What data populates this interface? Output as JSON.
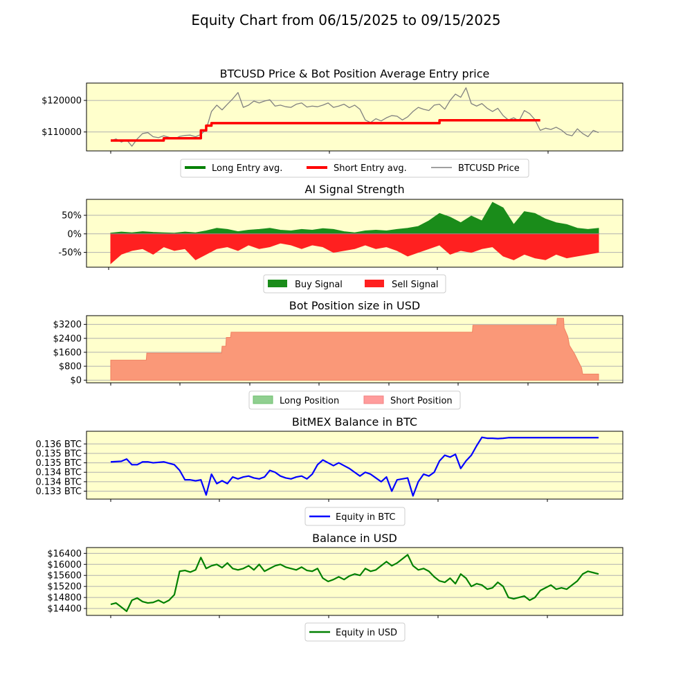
{
  "figure_title": "Equity Chart from 06/15/2025 to 09/15/2025",
  "colors": {
    "panel_bg": "#ffffcc",
    "grid": "#b0b0b0",
    "price": "#808080",
    "long_entry": "#008000",
    "short_entry": "#ff0000",
    "buy_signal": "#1a8c1a",
    "sell_signal": "#ff2020",
    "long_position": "#90cf90",
    "short_position": "#fa9878",
    "equity_btc": "#0000ff",
    "equity_usd": "#008000"
  },
  "chart_data": [
    {
      "type": "line",
      "title": "BTCUSD Price & Bot Position Average Entry price",
      "x_range": [
        "06/15/2025",
        "09/15/2025"
      ],
      "ylim": [
        104000,
        125500
      ],
      "yticks": [
        110000,
        120000
      ],
      "ytick_labels": [
        "$110000",
        "$120000"
      ],
      "grid": "horizontal",
      "legend": {
        "placement": "below",
        "entries": [
          "Long Entry avg.",
          "Short Entry avg.",
          "BTCUSD Price"
        ]
      },
      "series": [
        {
          "name": "BTCUSD Price",
          "x": [
            0,
            1,
            2,
            3,
            4,
            5,
            6,
            7,
            8,
            9,
            10,
            11,
            12,
            13,
            14,
            15,
            16,
            17,
            18,
            19,
            20,
            21,
            22,
            23,
            24,
            25,
            26,
            27,
            28,
            29,
            30,
            31,
            32,
            33,
            34,
            35,
            36,
            37,
            38,
            39,
            40,
            41,
            42,
            43,
            44,
            45,
            46,
            47,
            48,
            49,
            50,
            51,
            52,
            53,
            54,
            55,
            56,
            57,
            58,
            59,
            60,
            61,
            62,
            63,
            64,
            65,
            66,
            67,
            68,
            69,
            70,
            71,
            72,
            73,
            74,
            75,
            76,
            77,
            78,
            79,
            80,
            81,
            82,
            83,
            84,
            85,
            86,
            87,
            88,
            89,
            90,
            91,
            92
          ],
          "values": [
            107200,
            107800,
            106800,
            107500,
            105500,
            107800,
            109500,
            109800,
            108500,
            108200,
            108800,
            108300,
            107800,
            108600,
            108900,
            109000,
            108500,
            109200,
            110800,
            116500,
            118500,
            117000,
            118800,
            120500,
            122500,
            117800,
            118500,
            119800,
            119200,
            119800,
            120200,
            118200,
            118500,
            118000,
            117800,
            118800,
            119200,
            117900,
            118200,
            118000,
            118500,
            119200,
            117800,
            118200,
            118800,
            117700,
            118500,
            117200,
            113800,
            113000,
            114200,
            113500,
            114500,
            115200,
            115000,
            113800,
            114800,
            116500,
            117800,
            117200,
            116800,
            118500,
            118800,
            117200,
            120000,
            122000,
            121000,
            124000,
            119000,
            118200,
            119000,
            117500,
            116500,
            117500,
            115200,
            113800,
            114500,
            113500,
            116800,
            115800,
            113900,
            110500,
            111200,
            110800,
            111500,
            110600,
            109200,
            108800,
            111000,
            109500,
            108500,
            110500,
            109800
          ],
          "note": "sampled daily"
        },
        {
          "name": "Short Entry avg.",
          "x": [
            0,
            5,
            10,
            16,
            17,
            18,
            19,
            40,
            60,
            62,
            70,
            75,
            80,
            81
          ],
          "values": [
            107300,
            107300,
            108000,
            108000,
            110500,
            112000,
            112800,
            112800,
            112800,
            113700,
            113700,
            113700,
            113700,
            113700
          ]
        },
        {
          "name": "Long Entry avg.",
          "x": [],
          "values": []
        }
      ]
    },
    {
      "type": "area",
      "title": "AI Signal Strength",
      "ylim": [
        -90,
        93
      ],
      "yticks": [
        -50,
        0,
        50
      ],
      "ytick_labels": [
        "-50%",
        "0%",
        "50%"
      ],
      "grid": "horizontal",
      "legend": {
        "placement": "below",
        "entries": [
          "Buy Signal",
          "Sell Signal"
        ]
      },
      "series": [
        {
          "name": "Buy Signal",
          "x": [
            0,
            2,
            4,
            6,
            8,
            10,
            12,
            14,
            16,
            18,
            20,
            22,
            24,
            26,
            28,
            30,
            32,
            34,
            36,
            38,
            40,
            42,
            44,
            46,
            48,
            50,
            52,
            54,
            56,
            58,
            60,
            62,
            64,
            66,
            68,
            70,
            72,
            74,
            76,
            78,
            80,
            82,
            84,
            86,
            88,
            90,
            92
          ],
          "values": [
            2,
            5,
            3,
            6,
            4,
            3,
            2,
            5,
            3,
            8,
            15,
            12,
            6,
            10,
            12,
            15,
            10,
            8,
            12,
            10,
            14,
            12,
            6,
            3,
            8,
            10,
            8,
            12,
            15,
            20,
            35,
            55,
            45,
            30,
            48,
            35,
            85,
            70,
            25,
            60,
            55,
            40,
            30,
            25,
            15,
            12,
            15
          ]
        },
        {
          "name": "Sell Signal",
          "x": [
            0,
            2,
            4,
            6,
            8,
            10,
            12,
            14,
            16,
            18,
            20,
            22,
            24,
            26,
            28,
            30,
            32,
            34,
            36,
            38,
            40,
            42,
            44,
            46,
            48,
            50,
            52,
            54,
            56,
            58,
            60,
            62,
            64,
            66,
            68,
            70,
            72,
            74,
            76,
            78,
            80,
            82,
            84,
            86,
            88,
            90,
            92
          ],
          "values": [
            -80,
            -55,
            -45,
            -40,
            -55,
            -35,
            -45,
            -40,
            -70,
            -55,
            -40,
            -35,
            -45,
            -30,
            -40,
            -35,
            -25,
            -30,
            -40,
            -30,
            -35,
            -50,
            -45,
            -40,
            -30,
            -40,
            -35,
            -45,
            -60,
            -50,
            -40,
            -30,
            -55,
            -45,
            -50,
            -40,
            -35,
            -60,
            -70,
            -55,
            -65,
            -70,
            -55,
            -65,
            -60,
            -55,
            -50
          ]
        }
      ]
    },
    {
      "type": "area",
      "title": "Bot Position size in USD",
      "ylim": [
        -150,
        3700
      ],
      "yticks": [
        0,
        800,
        1600,
        2400,
        3200
      ],
      "ytick_labels": [
        "$0",
        "$800",
        "$1600",
        "$2400",
        "$3200"
      ],
      "grid": "horizontal",
      "legend": {
        "placement": "below",
        "entries": [
          "Long Position",
          "Short Position"
        ]
      },
      "series": [
        {
          "name": "Short Position",
          "x": [
            0,
            6.7,
            6.8,
            20.9,
            21,
            21.7,
            21.8,
            22.6,
            22.7,
            68.2,
            68.3,
            84.1,
            84.2,
            85.4,
            85.5,
            86.2,
            86.5,
            87.5,
            88.3,
            88.8,
            89,
            92
          ],
          "values": [
            1150,
            1150,
            1550,
            1550,
            1950,
            1950,
            2450,
            2450,
            2750,
            2750,
            3150,
            3150,
            3550,
            3550,
            3000,
            2500,
            2000,
            1500,
            1000,
            700,
            350,
            350
          ]
        },
        {
          "name": "Long Position",
          "x": [],
          "values": []
        }
      ]
    },
    {
      "type": "line",
      "title": "BitMEX Balance in BTC",
      "ylim": [
        0.13278,
        0.13637
      ],
      "yticks": [
        0.1332,
        0.1337,
        0.1342,
        0.1347,
        0.1352,
        0.1357
      ],
      "ytick_labels": [
        "0.133 BTC",
        "0.134 BTC",
        "0.134 BTC",
        "0.135 BTC",
        "0.135 BTC",
        "0.136 BTC"
      ],
      "grid": "horizontal",
      "legend": {
        "placement": "below",
        "entries": [
          "Equity in BTC"
        ]
      },
      "series": [
        {
          "name": "Equity in BTC",
          "x": [
            0,
            2,
            3,
            4,
            5,
            6,
            7,
            8,
            10,
            12,
            13,
            14,
            15,
            16,
            17,
            18,
            19,
            20,
            21,
            22,
            23,
            24,
            25,
            26,
            27,
            28,
            29,
            30,
            31,
            32,
            33,
            34,
            35,
            36,
            37,
            38,
            39,
            40,
            41,
            42,
            43,
            44,
            45,
            46,
            47,
            48,
            49,
            50,
            51,
            52,
            53,
            54,
            55,
            56,
            57,
            58,
            59,
            60,
            61,
            62,
            63,
            64,
            65,
            66,
            67,
            68,
            69,
            70,
            71,
            72,
            73,
            74,
            75,
            76,
            78,
            80,
            82,
            84,
            86,
            88,
            90,
            92
          ],
          "values": [
            0.13475,
            0.13478,
            0.1349,
            0.1346,
            0.1346,
            0.13475,
            0.13475,
            0.1347,
            0.13475,
            0.1346,
            0.1343,
            0.1338,
            0.1338,
            0.13375,
            0.1338,
            0.133,
            0.1341,
            0.1336,
            0.13375,
            0.1336,
            0.13395,
            0.13385,
            0.13395,
            0.134,
            0.1339,
            0.13385,
            0.13395,
            0.1343,
            0.1342,
            0.134,
            0.1339,
            0.13385,
            0.13395,
            0.134,
            0.13385,
            0.1341,
            0.1346,
            0.13485,
            0.1347,
            0.13455,
            0.1347,
            0.13455,
            0.1344,
            0.1342,
            0.134,
            0.1342,
            0.1341,
            0.1339,
            0.1337,
            0.13395,
            0.1332,
            0.1338,
            0.13385,
            0.1339,
            0.13295,
            0.1337,
            0.1341,
            0.134,
            0.1342,
            0.1348,
            0.1351,
            0.135,
            0.13515,
            0.1344,
            0.1348,
            0.1351,
            0.1356,
            0.13605,
            0.136,
            0.136,
            0.13598,
            0.136,
            0.13603,
            0.13603,
            0.13603,
            0.13603,
            0.13603,
            0.13603,
            0.13603,
            0.13603,
            0.13603,
            0.13603
          ]
        }
      ]
    },
    {
      "type": "line",
      "title": "Balance in USD",
      "ylim": [
        14150,
        16610
      ],
      "yticks": [
        14400,
        14800,
        15200,
        15600,
        16000,
        16400
      ],
      "ytick_labels": [
        "$14400",
        "$14800",
        "$15200",
        "$15600",
        "$16000",
        "$16400"
      ],
      "grid": "horizontal",
      "legend": {
        "placement": "below",
        "entries": [
          "Equity in USD"
        ]
      },
      "series": [
        {
          "name": "Equity in USD",
          "x": [
            0,
            1,
            2,
            3,
            4,
            5,
            6,
            7,
            8,
            9,
            10,
            11,
            12,
            13,
            14,
            15,
            16,
            17,
            18,
            19,
            20,
            21,
            22,
            23,
            24,
            25,
            26,
            27,
            28,
            29,
            30,
            31,
            32,
            33,
            34,
            35,
            36,
            37,
            38,
            39,
            40,
            41,
            42,
            43,
            44,
            45,
            46,
            47,
            48,
            49,
            50,
            51,
            52,
            53,
            54,
            55,
            56,
            57,
            58,
            59,
            60,
            61,
            62,
            63,
            64,
            65,
            66,
            67,
            68,
            69,
            70,
            71,
            72,
            73,
            74,
            75,
            76,
            77,
            78,
            79,
            80,
            81,
            82,
            83,
            84,
            85,
            86,
            87,
            88,
            89,
            90,
            91,
            92
          ],
          "values": [
            14550,
            14600,
            14450,
            14300,
            14700,
            14780,
            14650,
            14600,
            14620,
            14700,
            14600,
            14700,
            14900,
            15750,
            15780,
            15720,
            15800,
            16250,
            15850,
            15950,
            16000,
            15880,
            16050,
            15850,
            15800,
            15850,
            15950,
            15800,
            16000,
            15750,
            15850,
            15950,
            16000,
            15900,
            15850,
            15800,
            15900,
            15780,
            15750,
            15850,
            15500,
            15380,
            15450,
            15550,
            15450,
            15580,
            15650,
            15600,
            15850,
            15750,
            15800,
            15950,
            16100,
            15950,
            16050,
            16200,
            16350,
            15950,
            15800,
            15850,
            15750,
            15550,
            15400,
            15350,
            15500,
            15300,
            15650,
            15500,
            15200,
            15300,
            15250,
            15100,
            15150,
            15350,
            15200,
            14800,
            14750,
            14800,
            14850,
            14700,
            14800,
            15050,
            15150,
            15250,
            15100,
            15150,
            15100,
            15250,
            15400,
            15650,
            15750,
            15700,
            15650
          ]
        }
      ]
    }
  ]
}
